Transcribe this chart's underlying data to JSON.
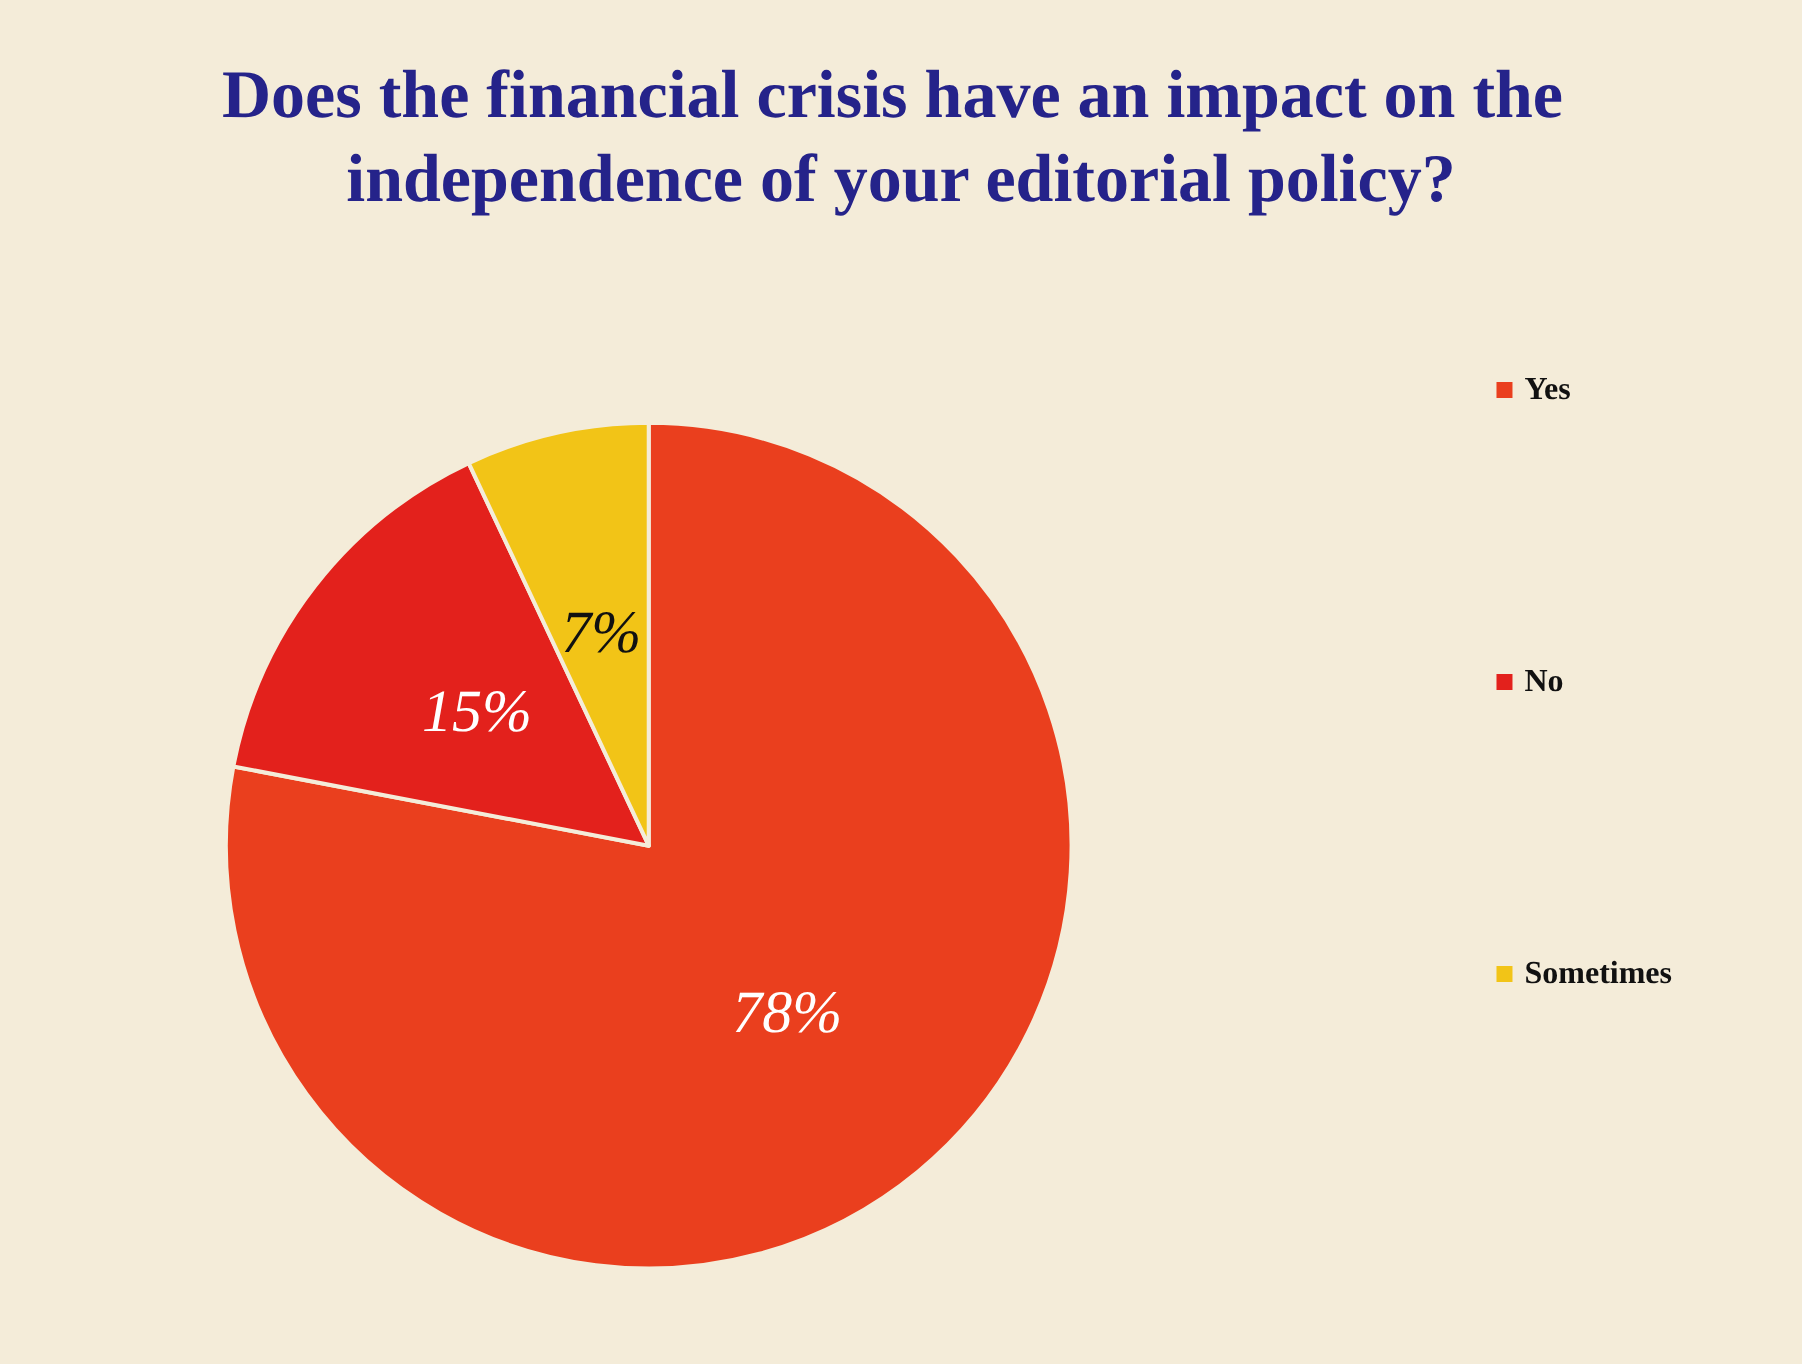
{
  "chart_data": {
    "type": "pie",
    "title": "Does the financial crisis have an impact on the independence of your editorial policy?",
    "categories": [
      "Yes",
      "No",
      "Sometimes"
    ],
    "values": [
      78,
      15,
      7
    ],
    "colors": [
      "#ea3f1e",
      "#e3211c",
      "#f2c417"
    ],
    "value_labels": [
      "78%",
      "15%",
      "7%"
    ],
    "legend": "right"
  }
}
